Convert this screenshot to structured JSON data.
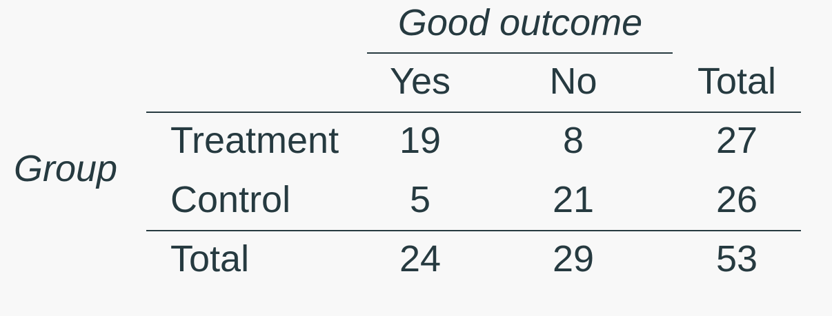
{
  "table": {
    "spanner_label": "Good outcome",
    "row_group_label": "Group",
    "column_headers": [
      "Yes",
      "No",
      "Total"
    ],
    "rows": [
      {
        "label": "Treatment",
        "values": [
          "19",
          "8",
          "27"
        ]
      },
      {
        "label": "Control",
        "values": [
          "5",
          "21",
          "26"
        ]
      }
    ],
    "total_row": {
      "label": "Total",
      "values": [
        "24",
        "29",
        "53"
      ]
    }
  }
}
